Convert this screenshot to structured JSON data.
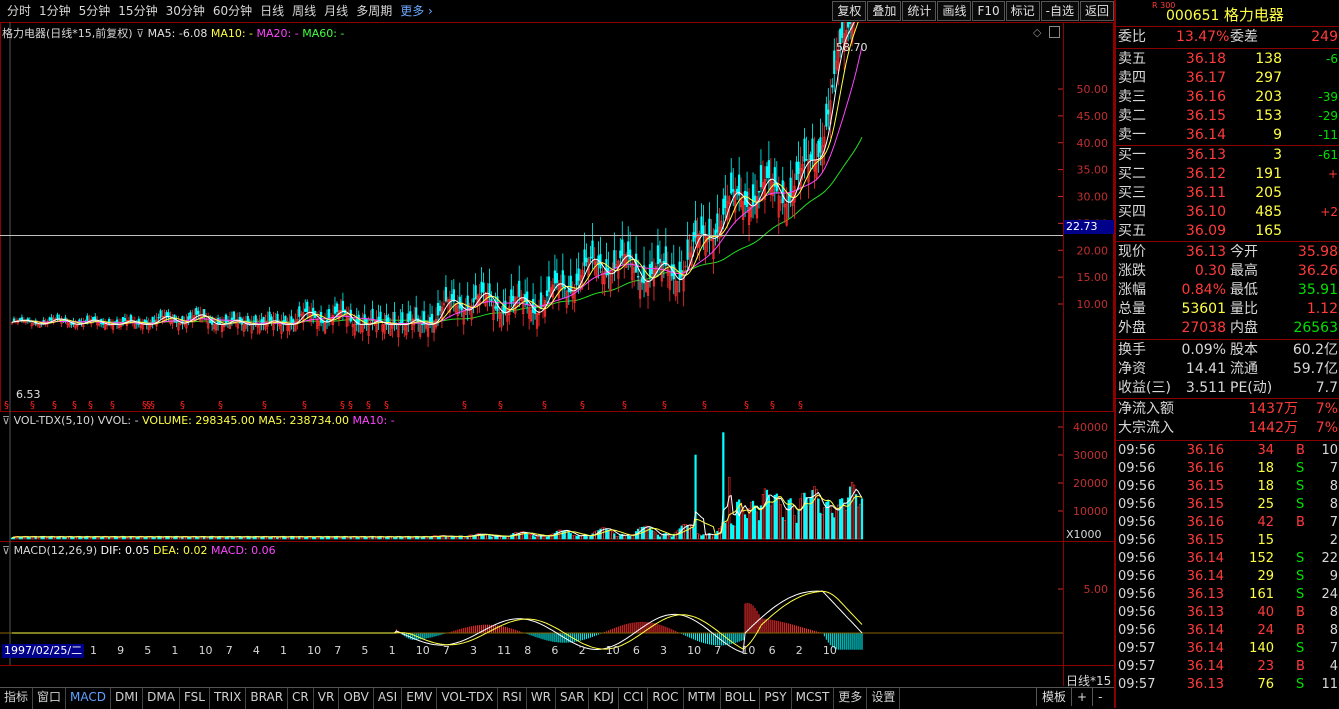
{
  "toolbar": {
    "periods": [
      "分时",
      "1分钟",
      "5分钟",
      "15分钟",
      "30分钟",
      "60分钟",
      "日线",
      "周线",
      "月线",
      "多周期",
      "更多 ›"
    ],
    "buttons": [
      "复权",
      "叠加",
      "统计",
      "画线",
      "F10",
      "标记",
      "-自选",
      "返回"
    ]
  },
  "main_panel": {
    "title": "格力电器(日线*15,前复权)",
    "ma5": "MA5: -6.08",
    "ma10": "MA10: -",
    "ma20": "MA20: -",
    "ma60": "MA60: -",
    "high_label": "58.70",
    "low_label": "6.53",
    "crosshair_value": "22.73",
    "y_ticks": [
      "50.00",
      "45.00",
      "40.00",
      "35.00",
      "30.00",
      "25.00",
      "20.00",
      "15.00",
      "10.00"
    ]
  },
  "vol_panel": {
    "title": "VOL-TDX(5,10)",
    "vvol": "VVOL: -",
    "volume": "VOLUME: 298345.00",
    "ma5": "MA5: 238734.00",
    "ma10": "MA10: -",
    "y_ticks": [
      "40000",
      "30000",
      "20000",
      "10000"
    ],
    "unit": "X1000"
  },
  "macd_panel": {
    "title": "MACD(12,26,9)",
    "dif": "DIF: 0.05",
    "dea": "DEA: 0.02",
    "macd": "MACD: 0.06",
    "y_tick": "5.00"
  },
  "x_axis": {
    "date": "1997/02/25/二",
    "labels": [
      "1",
      "9",
      "5",
      "1",
      "10",
      "7",
      "4",
      "1",
      "10",
      "7",
      "5",
      "1",
      "10",
      "7",
      "3",
      "11",
      "8",
      "6",
      "2",
      "10",
      "6",
      "3",
      "10",
      "7",
      "10",
      "6",
      "2",
      "10"
    ],
    "period": "日线*15"
  },
  "bottom_tabs": [
    "指标",
    "窗口",
    "MACD",
    "DMI",
    "DMA",
    "FSL",
    "TRIX",
    "BRAR",
    "CR",
    "VR",
    "OBV",
    "ASI",
    "EMV",
    "VOL-TDX",
    "RSI",
    "WR",
    "SAR",
    "KDJ",
    "CCI",
    "ROC",
    "MTM",
    "BOLL",
    "PSY",
    "MCST",
    "更多",
    "设置"
  ],
  "bottom_right": [
    "模板",
    "+",
    "-"
  ],
  "quote": {
    "badge": "R 300",
    "code": "000651",
    "name": "格力电器",
    "wei_bi_label": "委比",
    "wei_bi": "13.47%",
    "wei_cha_label": "委差",
    "wei_cha": "249",
    "asks": [
      {
        "label": "卖五",
        "price": "36.18",
        "vol": "138",
        "chg": "-6"
      },
      {
        "label": "卖四",
        "price": "36.17",
        "vol": "297",
        "chg": ""
      },
      {
        "label": "卖三",
        "price": "36.16",
        "vol": "203",
        "chg": "-39"
      },
      {
        "label": "卖二",
        "price": "36.15",
        "vol": "153",
        "chg": "-29"
      },
      {
        "label": "卖一",
        "price": "36.14",
        "vol": "9",
        "chg": "-11"
      }
    ],
    "bids": [
      {
        "label": "买一",
        "price": "36.13",
        "vol": "3",
        "chg": "-61"
      },
      {
        "label": "买二",
        "price": "36.12",
        "vol": "191",
        "chg": "+"
      },
      {
        "label": "买三",
        "price": "36.11",
        "vol": "205",
        "chg": ""
      },
      {
        "label": "买四",
        "price": "36.10",
        "vol": "485",
        "chg": "+2"
      },
      {
        "label": "买五",
        "price": "36.09",
        "vol": "165",
        "chg": ""
      }
    ],
    "stats": [
      {
        "l1": "现价",
        "v1": "36.13",
        "l2": "今开",
        "v2": "35.98"
      },
      {
        "l1": "涨跌",
        "v1": "0.30",
        "l2": "最高",
        "v2": "36.26"
      },
      {
        "l1": "涨幅",
        "v1": "0.84%",
        "l2": "最低",
        "v2": "35.91"
      },
      {
        "l1": "总量",
        "v1": "53601",
        "l2": "量比",
        "v2": "1.12"
      },
      {
        "l1": "外盘",
        "v1": "27038",
        "l2": "内盘",
        "v2": "26563"
      }
    ],
    "fund": [
      {
        "l1": "换手",
        "v1": "0.09%",
        "l2": "股本",
        "v2": "60.2亿"
      },
      {
        "l1": "净资",
        "v1": "14.41",
        "l2": "流通",
        "v2": "59.7亿"
      },
      {
        "l1": "收益(三)",
        "v1": "3.511",
        "l2": "PE(动)",
        "v2": "7.7"
      }
    ],
    "flow": [
      {
        "label": "净流入额",
        "val": "1437万",
        "pct": "7%"
      },
      {
        "label": "大宗流入",
        "val": "1442万",
        "pct": "7%"
      }
    ],
    "ticks": [
      {
        "t": "09:56",
        "p": "36.16",
        "v": "34",
        "s": "B",
        "n": "10"
      },
      {
        "t": "09:56",
        "p": "36.16",
        "v": "18",
        "s": "S",
        "n": "7"
      },
      {
        "t": "09:56",
        "p": "36.15",
        "v": "18",
        "s": "S",
        "n": "8"
      },
      {
        "t": "09:56",
        "p": "36.15",
        "v": "25",
        "s": "S",
        "n": "8"
      },
      {
        "t": "09:56",
        "p": "36.16",
        "v": "42",
        "s": "B",
        "n": "7"
      },
      {
        "t": "09:56",
        "p": "36.15",
        "v": "15",
        "s": "",
        "n": "2"
      },
      {
        "t": "09:56",
        "p": "36.14",
        "v": "152",
        "s": "S",
        "n": "22"
      },
      {
        "t": "09:56",
        "p": "36.14",
        "v": "29",
        "s": "S",
        "n": "9"
      },
      {
        "t": "09:56",
        "p": "36.13",
        "v": "161",
        "s": "S",
        "n": "24"
      },
      {
        "t": "09:56",
        "p": "36.13",
        "v": "40",
        "s": "B",
        "n": "8"
      },
      {
        "t": "09:56",
        "p": "36.14",
        "v": "24",
        "s": "B",
        "n": "8"
      },
      {
        "t": "09:57",
        "p": "36.14",
        "v": "140",
        "s": "S",
        "n": "7"
      },
      {
        "t": "09:57",
        "p": "36.14",
        "v": "23",
        "s": "B",
        "n": "4"
      },
      {
        "t": "09:57",
        "p": "36.13",
        "v": "76",
        "s": "S",
        "n": "11"
      }
    ]
  }
}
